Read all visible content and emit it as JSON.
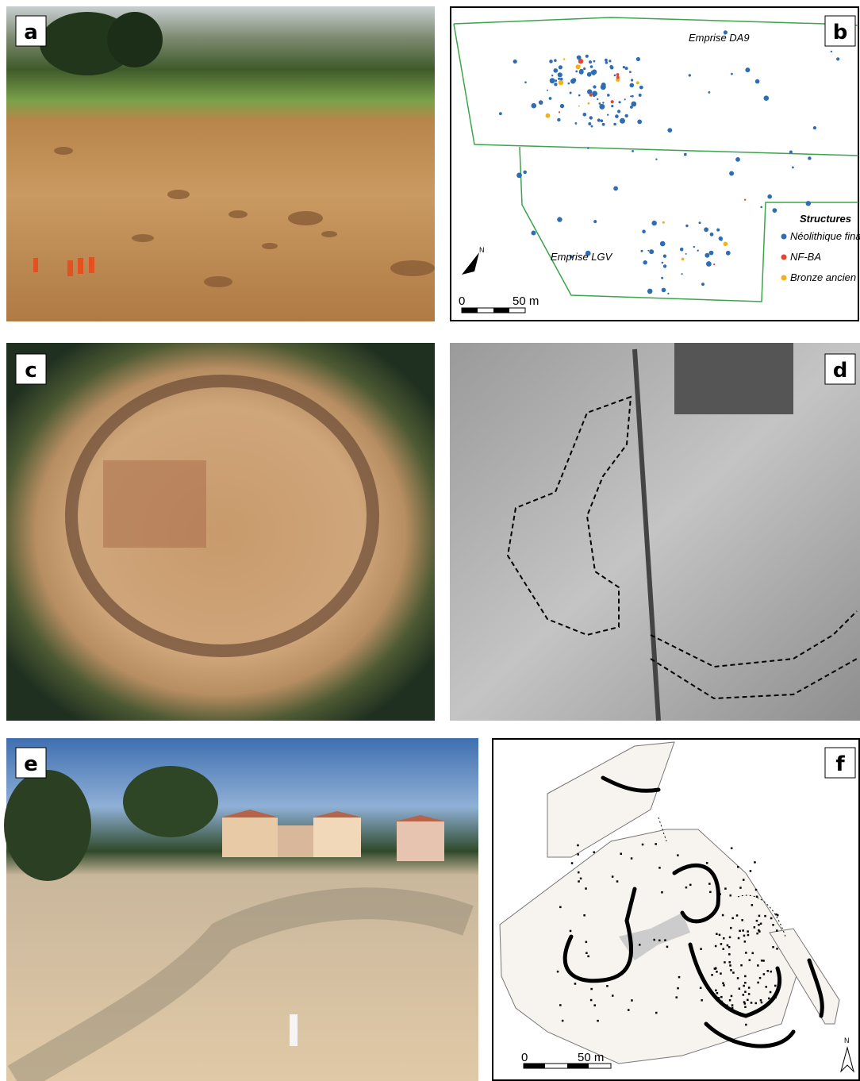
{
  "panels": [
    {
      "label": "a"
    },
    {
      "label": "b",
      "zones": [
        "Emprise DA9",
        "Emprise LGV"
      ],
      "legend": {
        "title": "Structures",
        "items": [
          {
            "name": "Néolithique final",
            "color": "#2e6db4"
          },
          {
            "name": "NF-BA",
            "color": "#e8432b"
          },
          {
            "name": "Bronze ancien",
            "color": "#f2b21d"
          }
        ]
      },
      "scale": [
        "0",
        "50 m"
      ],
      "north": "N"
    },
    {
      "label": "c"
    },
    {
      "label": "d"
    },
    {
      "label": "e"
    },
    {
      "label": "f",
      "scale": [
        "0",
        "50 m"
      ],
      "north": "N"
    }
  ]
}
